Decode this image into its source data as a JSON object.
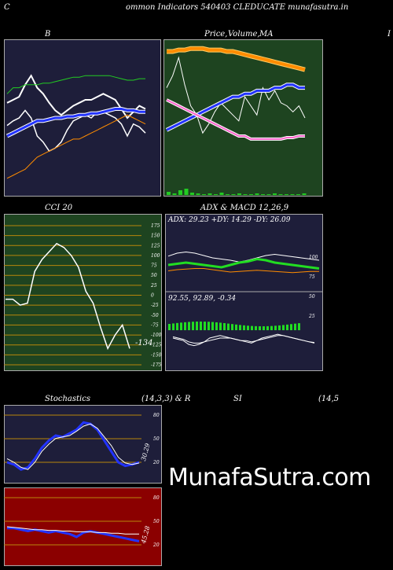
{
  "header": {
    "left_letter": "C",
    "title": "ommon  Indicators 540403 CLEDUCATE munafasutra.in"
  },
  "panels": {
    "bollinger": {
      "title": "B"
    },
    "price_ma": {
      "title_a": "Price,",
      "title_b": "Volume,",
      "title_c": "MA"
    },
    "edge_letter": "I",
    "cci": {
      "title": "CCI 20",
      "ticks": [
        "175",
        "150",
        "125",
        "100",
        "75",
        "50",
        "25",
        "0",
        "-25",
        "-50",
        "-75",
        "-100",
        "-125",
        "-150",
        "-175"
      ],
      "last_value": "-134"
    },
    "adx_macd": {
      "title": "ADX  & MACD 12,26,9",
      "adx_text": "ADX: 29.23  +DY: 14.29  -DY: 26.09",
      "adx_ticks": [
        "100",
        "75",
        "50",
        "25"
      ],
      "macd_text": "92.55,  92.89,  -0.34"
    },
    "stochastics": {
      "title_a": "Stochastics",
      "title_b": "(14,3,3) & R",
      "ticks": [
        "80",
        "50",
        "20"
      ],
      "last_value": "30.29"
    },
    "rsi": {
      "title_a": "SI",
      "title_b": "(14,5",
      "ticks": [
        "80",
        "50",
        "20"
      ],
      "last_value": "45.28"
    }
  },
  "watermark": "MunafaSutra.com",
  "colors": {
    "navy": "#1e1e3a",
    "green_panel": "#1e4420",
    "dark_red": "#8b0000",
    "orange_line": "#ff8c00",
    "cci_grid": "#b8860b"
  },
  "chart_data": [
    {
      "type": "line",
      "name": "bollinger",
      "ylim": [
        0,
        100
      ],
      "series": [
        {
          "values": [
            60,
            62,
            64,
            72,
            78,
            70,
            66,
            60,
            55,
            52,
            55,
            58,
            60,
            62,
            62,
            64,
            66,
            64,
            62,
            56,
            50,
            54,
            58,
            56
          ]
        },
        {
          "values": [
            45,
            48,
            50,
            55,
            50,
            38,
            34,
            28,
            30,
            34,
            42,
            48,
            50,
            52,
            50,
            54,
            54,
            52,
            50,
            46,
            38,
            46,
            44,
            40
          ]
        },
        {
          "values": [
            38,
            40,
            42,
            44,
            46,
            48,
            48,
            49,
            50,
            50,
            51,
            51,
            52,
            52,
            53,
            53,
            54,
            55,
            56,
            56,
            55,
            55,
            54,
            54
          ]
        },
        {
          "values": [
            66,
            70,
            70,
            72,
            72,
            72,
            73,
            73,
            74,
            75,
            76,
            77,
            77,
            78,
            78,
            78,
            78,
            78,
            77,
            76,
            75,
            75,
            76,
            76
          ]
        },
        {
          "values": [
            10,
            12,
            14,
            16,
            20,
            24,
            26,
            28,
            30,
            32,
            34,
            36,
            36,
            38,
            40,
            42,
            44,
            46,
            48,
            50,
            52,
            50,
            48,
            46
          ]
        }
      ]
    },
    {
      "type": "line",
      "name": "price_ma",
      "ylim": [
        0,
        100
      ],
      "series": [
        {
          "values": [
            70,
            78,
            90,
            72,
            58,
            52,
            40,
            46,
            54,
            60,
            56,
            52,
            48,
            64,
            58,
            52,
            70,
            62,
            68,
            60,
            58,
            54,
            58,
            50
          ]
        },
        {
          "values": [
            42,
            44,
            46,
            48,
            50,
            52,
            54,
            56,
            58,
            60,
            62,
            64,
            64,
            66,
            66,
            68,
            68,
            68,
            70,
            70,
            72,
            72,
            70,
            70
          ]
        },
        {
          "values": [
            62,
            60,
            58,
            56,
            54,
            52,
            50,
            48,
            46,
            44,
            42,
            40,
            38,
            38,
            36,
            36,
            36,
            36,
            36,
            36,
            37,
            37,
            38,
            38
          ]
        },
        {
          "values": [
            94,
            94,
            95,
            95,
            96,
            96,
            96,
            95,
            95,
            95,
            94,
            94,
            93,
            92,
            91,
            90,
            89,
            88,
            87,
            86,
            85,
            84,
            83,
            82
          ]
        }
      ]
    },
    {
      "type": "line",
      "name": "cci",
      "ylim": [
        -175,
        175
      ],
      "series": [
        {
          "values": [
            -10,
            -10,
            -25,
            -20,
            60,
            90,
            110,
            130,
            120,
            100,
            70,
            10,
            -20,
            -80,
            -134,
            -100,
            -75,
            -134
          ]
        }
      ]
    },
    {
      "type": "line",
      "name": "adx",
      "ylim": [
        0,
        100
      ],
      "series": [
        {
          "values": [
            30,
            32,
            33,
            34,
            34,
            32,
            30,
            28,
            29,
            30,
            31,
            30,
            29,
            28,
            27,
            28,
            29,
            29
          ]
        },
        {
          "values": [
            55,
            60,
            62,
            60,
            56,
            52,
            50,
            48,
            45,
            48,
            52,
            56,
            58,
            56,
            54,
            52,
            50,
            48
          ]
        },
        {
          "values": [
            40,
            42,
            44,
            42,
            40,
            38,
            36,
            40,
            44,
            46,
            50,
            48,
            44,
            42,
            40,
            38,
            36,
            34
          ]
        }
      ]
    },
    {
      "type": "line",
      "name": "stochastics",
      "ylim": [
        0,
        100
      ],
      "series": [
        {
          "values": [
            25,
            22,
            15,
            18,
            30,
            45,
            55,
            62,
            60,
            65,
            70,
            80,
            78,
            70,
            55,
            40,
            25,
            20,
            22,
            25
          ]
        },
        {
          "values": [
            30,
            25,
            18,
            15,
            25,
            40,
            50,
            58,
            60,
            62,
            68,
            75,
            78,
            72,
            60,
            48,
            32,
            24,
            22,
            24
          ]
        }
      ]
    },
    {
      "type": "line",
      "name": "rsi",
      "ylim": [
        0,
        100
      ],
      "series": [
        {
          "values": [
            48,
            48,
            46,
            44,
            46,
            44,
            42,
            44,
            42,
            40,
            36,
            42,
            44,
            42,
            40,
            38,
            36,
            34,
            32,
            30
          ]
        },
        {
          "values": [
            50,
            49,
            48,
            47,
            46,
            46,
            45,
            45,
            44,
            44,
            43,
            43,
            43,
            42,
            42,
            41,
            41,
            40,
            40,
            40
          ]
        }
      ]
    }
  ]
}
